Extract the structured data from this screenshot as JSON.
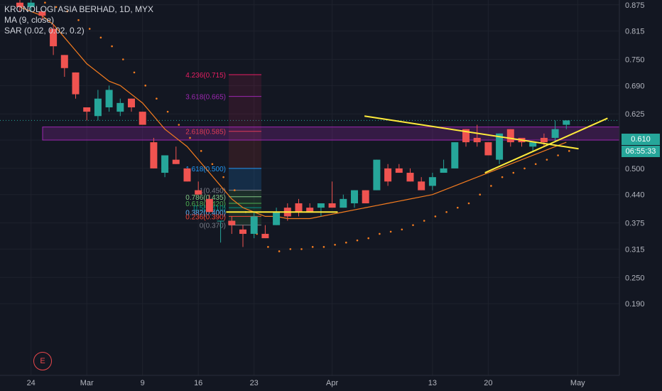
{
  "legend": {
    "symbol": "KRONOLOGI ASIA BERHAD, 1D, MYX",
    "ma": "MA (9, close)",
    "sar": "SAR (0.02, 0.02, 0.2)"
  },
  "badge": "E",
  "price_tags": {
    "last": "0.610",
    "timer": "06:55:33"
  },
  "colors": {
    "background": "#131722",
    "up": "#26a69a",
    "down": "#ef5350",
    "ma": "#f57c1f",
    "sar": "#f57c1f",
    "trendlines": "#ffeb3b",
    "zone": "#9c27b0",
    "grid": "#1e222d",
    "text": "#b2b5be"
  },
  "chart_data": {
    "type": "candlestick",
    "title": "KRONOLOGI ASIA BERHAD, 1D, MYX",
    "ylim": [
      0.16,
      0.9
    ],
    "y_ticks": [
      "0.875",
      "0.815",
      "0.750",
      "0.690",
      "0.625",
      "0.565",
      "0.500",
      "0.440",
      "0.375",
      "0.315",
      "0.250",
      "0.190"
    ],
    "x_ticks": [
      "24",
      "Mar",
      "9",
      "16",
      "23",
      "Apr",
      "13",
      "20",
      "May"
    ],
    "candles": [
      {
        "o": 0.88,
        "h": 0.89,
        "l": 0.86,
        "c": 0.87
      },
      {
        "o": 0.87,
        "h": 0.89,
        "l": 0.86,
        "c": 0.88
      },
      {
        "o": 0.86,
        "h": 0.86,
        "l": 0.84,
        "c": 0.85
      },
      {
        "o": 0.82,
        "h": 0.83,
        "l": 0.76,
        "c": 0.78
      },
      {
        "o": 0.76,
        "h": 0.76,
        "l": 0.71,
        "c": 0.73
      },
      {
        "o": 0.72,
        "h": 0.72,
        "l": 0.66,
        "c": 0.67
      },
      {
        "o": 0.64,
        "h": 0.64,
        "l": 0.61,
        "c": 0.63
      },
      {
        "o": 0.62,
        "h": 0.68,
        "l": 0.61,
        "c": 0.66
      },
      {
        "o": 0.64,
        "h": 0.69,
        "l": 0.63,
        "c": 0.68
      },
      {
        "o": 0.63,
        "h": 0.66,
        "l": 0.62,
        "c": 0.65
      },
      {
        "o": 0.66,
        "h": 0.66,
        "l": 0.63,
        "c": 0.64
      },
      {
        "o": 0.63,
        "h": 0.63,
        "l": 0.6,
        "c": 0.6
      },
      {
        "o": 0.56,
        "h": 0.57,
        "l": 0.5,
        "c": 0.5
      },
      {
        "o": 0.49,
        "h": 0.53,
        "l": 0.48,
        "c": 0.53
      },
      {
        "o": 0.52,
        "h": 0.55,
        "l": 0.51,
        "c": 0.51
      },
      {
        "o": 0.5,
        "h": 0.5,
        "l": 0.47,
        "c": 0.47
      },
      {
        "o": 0.45,
        "h": 0.47,
        "l": 0.44,
        "c": 0.44
      },
      {
        "o": 0.43,
        "h": 0.44,
        "l": 0.4,
        "c": 0.4
      },
      {
        "o": 0.38,
        "h": 0.38,
        "l": 0.33,
        "c": 0.38
      },
      {
        "o": 0.38,
        "h": 0.39,
        "l": 0.35,
        "c": 0.37
      },
      {
        "o": 0.36,
        "h": 0.37,
        "l": 0.32,
        "c": 0.35
      },
      {
        "o": 0.35,
        "h": 0.4,
        "l": 0.34,
        "c": 0.39
      },
      {
        "o": 0.35,
        "h": 0.37,
        "l": 0.34,
        "c": 0.34
      },
      {
        "o": 0.37,
        "h": 0.41,
        "l": 0.37,
        "c": 0.4
      },
      {
        "o": 0.41,
        "h": 0.42,
        "l": 0.38,
        "c": 0.39
      },
      {
        "o": 0.42,
        "h": 0.43,
        "l": 0.39,
        "c": 0.4
      },
      {
        "o": 0.41,
        "h": 0.42,
        "l": 0.4,
        "c": 0.4
      },
      {
        "o": 0.41,
        "h": 0.42,
        "l": 0.39,
        "c": 0.42
      },
      {
        "o": 0.42,
        "h": 0.47,
        "l": 0.41,
        "c": 0.41
      },
      {
        "o": 0.41,
        "h": 0.44,
        "l": 0.41,
        "c": 0.43
      },
      {
        "o": 0.42,
        "h": 0.45,
        "l": 0.41,
        "c": 0.45
      },
      {
        "o": 0.45,
        "h": 0.45,
        "l": 0.42,
        "c": 0.42
      },
      {
        "o": 0.45,
        "h": 0.52,
        "l": 0.45,
        "c": 0.52
      },
      {
        "o": 0.5,
        "h": 0.51,
        "l": 0.46,
        "c": 0.47
      },
      {
        "o": 0.5,
        "h": 0.51,
        "l": 0.49,
        "c": 0.49
      },
      {
        "o": 0.49,
        "h": 0.5,
        "l": 0.47,
        "c": 0.47
      },
      {
        "o": 0.47,
        "h": 0.48,
        "l": 0.45,
        "c": 0.45
      },
      {
        "o": 0.46,
        "h": 0.49,
        "l": 0.45,
        "c": 0.48
      },
      {
        "o": 0.49,
        "h": 0.52,
        "l": 0.49,
        "c": 0.5
      },
      {
        "o": 0.5,
        "h": 0.56,
        "l": 0.5,
        "c": 0.56
      },
      {
        "o": 0.59,
        "h": 0.59,
        "l": 0.55,
        "c": 0.56
      },
      {
        "o": 0.57,
        "h": 0.6,
        "l": 0.55,
        "c": 0.56
      },
      {
        "o": 0.56,
        "h": 0.56,
        "l": 0.53,
        "c": 0.53
      },
      {
        "o": 0.52,
        "h": 0.58,
        "l": 0.51,
        "c": 0.58
      },
      {
        "o": 0.59,
        "h": 0.59,
        "l": 0.55,
        "c": 0.56
      },
      {
        "o": 0.57,
        "h": 0.57,
        "l": 0.55,
        "c": 0.56
      },
      {
        "o": 0.55,
        "h": 0.56,
        "l": 0.54,
        "c": 0.56
      },
      {
        "o": 0.57,
        "h": 0.58,
        "l": 0.55,
        "c": 0.56
      },
      {
        "o": 0.57,
        "h": 0.61,
        "l": 0.56,
        "c": 0.59
      },
      {
        "o": 0.6,
        "h": 0.61,
        "l": 0.59,
        "c": 0.61
      }
    ],
    "ma_9": [
      0.87,
      0.86,
      0.85,
      0.83,
      0.8,
      0.77,
      0.74,
      0.72,
      0.7,
      0.69,
      0.67,
      0.65,
      0.62,
      0.59,
      0.57,
      0.55,
      0.52,
      0.49,
      0.46,
      0.43,
      0.41,
      0.4,
      0.39,
      0.39,
      0.385,
      0.385,
      0.385,
      0.39,
      0.395,
      0.4,
      0.405,
      0.41,
      0.415,
      0.42,
      0.425,
      0.43,
      0.435,
      0.44,
      0.45,
      0.46,
      0.47,
      0.48,
      0.49,
      0.5,
      0.51,
      0.52,
      0.53,
      0.54,
      0.55,
      0.56
    ],
    "sar": [
      0.9,
      0.89,
      0.88,
      0.87,
      0.86,
      0.84,
      0.82,
      0.8,
      0.78,
      0.75,
      0.72,
      0.69,
      0.66,
      0.63,
      0.6,
      0.57,
      0.54,
      0.51,
      0.48,
      0.45,
      0.4,
      0.35,
      0.32,
      0.31,
      0.315,
      0.315,
      0.32,
      0.32,
      0.325,
      0.33,
      0.335,
      0.34,
      0.35,
      0.355,
      0.36,
      0.37,
      0.38,
      0.39,
      0.4,
      0.41,
      0.42,
      0.44,
      0.46,
      0.48,
      0.49,
      0.5,
      0.51,
      0.52,
      0.53,
      0.54
    ],
    "fib_levels": [
      {
        "label": "4.236(0.715)",
        "value": 0.715,
        "color": "#e91e63"
      },
      {
        "label": "3.618(0.665)",
        "value": 0.665,
        "color": "#9c27b0"
      },
      {
        "label": "2.618(0.585)",
        "value": 0.585,
        "color": "#f44336"
      },
      {
        "label": "1.618(0.500)",
        "value": 0.5,
        "color": "#2196f3"
      },
      {
        "label": "1(0.450)",
        "value": 0.45,
        "color": "#787b86"
      },
      {
        "label": "0.786(0.435)",
        "value": 0.435,
        "color": "#81c784"
      },
      {
        "label": "0.618(0.420)",
        "value": 0.42,
        "color": "#4caf50"
      },
      {
        "label": "0.5(0.410)",
        "value": 0.41,
        "color": "#009688"
      },
      {
        "label": "0.382(0.400)",
        "value": 0.4,
        "color": "#64b5f6"
      },
      {
        "label": "0.236(0.390)",
        "value": 0.39,
        "color": "#f44336"
      },
      {
        "label": "0(0.370)",
        "value": 0.37,
        "color": "#787b86"
      }
    ],
    "resistance_zone": [
      0.565,
      0.595
    ],
    "last_price": 0.61
  }
}
